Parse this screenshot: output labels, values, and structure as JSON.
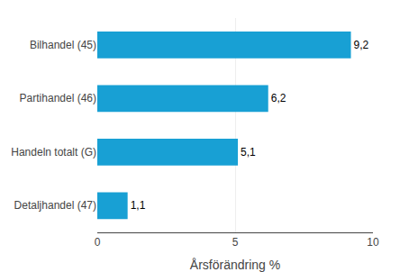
{
  "chart_data": {
    "type": "bar",
    "orientation": "horizontal",
    "categories": [
      "Detaljhandel (47)",
      "Handeln totalt (G)",
      "Partihandel (46)",
      "Bilhandel (45)"
    ],
    "values": [
      1.1,
      5.1,
      6.2,
      9.2
    ],
    "value_labels": [
      "1,1",
      "5,1",
      "6,2",
      "9,2"
    ],
    "color": "#18a0d4",
    "xlabel": "Årsförändring %",
    "xlim": [
      0,
      10
    ],
    "xticks": [
      0,
      5,
      10
    ],
    "grid": true
  }
}
